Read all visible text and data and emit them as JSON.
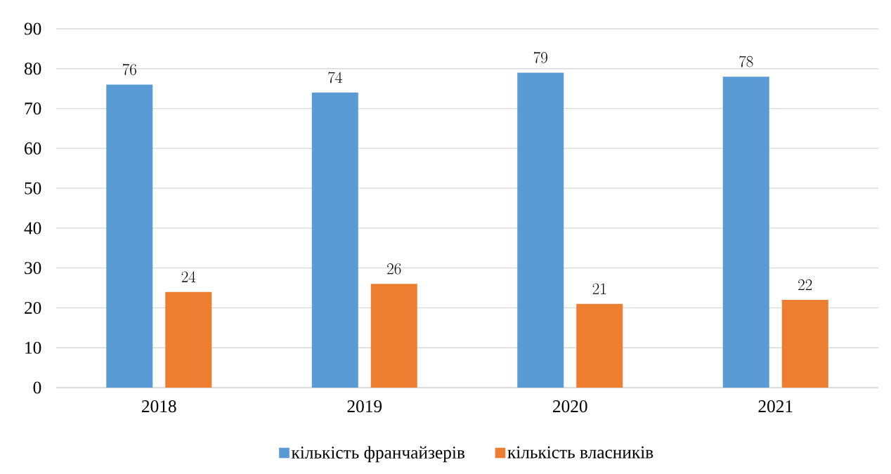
{
  "chart_data": {
    "type": "bar",
    "categories": [
      "2018",
      "2019",
      "2020",
      "2021"
    ],
    "series": [
      {
        "name": "кількість франчайзерів",
        "color": "#5b9bd5",
        "values": [
          76,
          74,
          79,
          78
        ]
      },
      {
        "name": "кількість власників",
        "color": "#ed7d31",
        "values": [
          24,
          26,
          21,
          22
        ]
      }
    ],
    "ylim": [
      0,
      90
    ],
    "yticks": [
      0,
      10,
      20,
      30,
      40,
      50,
      60,
      70,
      80,
      90
    ],
    "grid": "y",
    "legend": "bottom",
    "data_labels": true
  }
}
